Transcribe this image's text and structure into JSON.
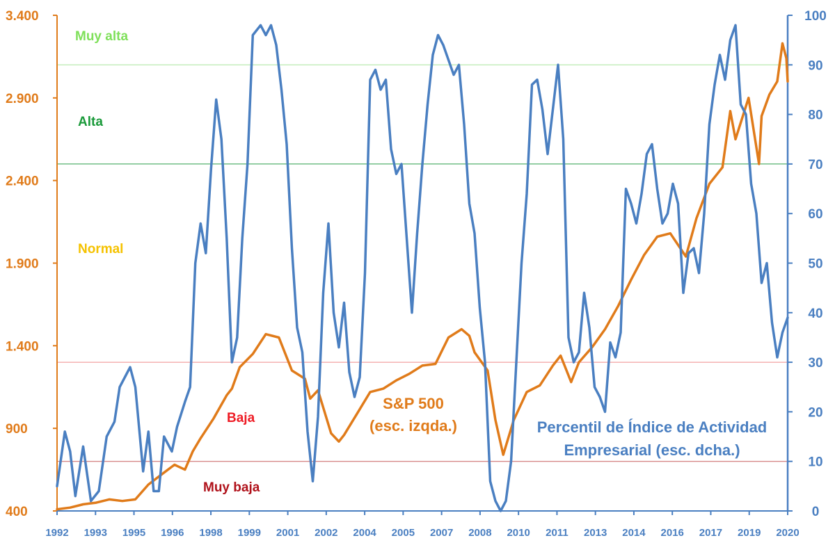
{
  "chart_data": {
    "type": "line",
    "title": "",
    "x_range": [
      1992,
      2020
    ],
    "x_ticks": [
      "1992",
      "1993",
      "1995",
      "1996",
      "1998",
      "1999",
      "2001",
      "2002",
      "2004",
      "2005",
      "2007",
      "2008",
      "2010",
      "2011",
      "2013",
      "2014",
      "2016",
      "2017",
      "2019",
      "2020"
    ],
    "y_left": {
      "range": [
        400,
        3400
      ],
      "ticks": [
        "400",
        "900",
        "1.400",
        "1.900",
        "2.400",
        "2.900",
        "3.400"
      ],
      "color": "#e07b1a"
    },
    "y_right": {
      "range": [
        0,
        100
      ],
      "ticks": [
        "0",
        "10",
        "20",
        "30",
        "40",
        "50",
        "60",
        "70",
        "80",
        "90",
        "100"
      ],
      "color": "#4a7fc1"
    },
    "zones": [
      {
        "label": "Muy alta",
        "color": "#7fe05a"
      },
      {
        "label": "Alta",
        "color": "#1a9a3a"
      },
      {
        "label": "Normal",
        "color": "#f5c200"
      },
      {
        "label": "Baja",
        "color": "#ee1c25"
      },
      {
        "label": "Muy baja",
        "color": "#b0121b"
      }
    ],
    "thresholds_right": [
      {
        "value": 90,
        "color": "#a8e59a"
      },
      {
        "value": 70,
        "color": "#2a9d4a"
      },
      {
        "value": 30,
        "color": "#f08a8a"
      },
      {
        "value": 10,
        "color": "#c86060"
      }
    ],
    "series": [
      {
        "name": "S&P 500",
        "label_lines": [
          "S&P 500",
          "(esc. izqda.)"
        ],
        "axis": "left",
        "color": "#e07b1a",
        "points": [
          [
            1992.0,
            410
          ],
          [
            1992.5,
            420
          ],
          [
            1993.0,
            440
          ],
          [
            1993.5,
            450
          ],
          [
            1994.0,
            470
          ],
          [
            1994.5,
            460
          ],
          [
            1995.0,
            470
          ],
          [
            1995.5,
            560
          ],
          [
            1996.0,
            620
          ],
          [
            1996.5,
            680
          ],
          [
            1996.9,
            650
          ],
          [
            1997.2,
            760
          ],
          [
            1997.5,
            840
          ],
          [
            1998.0,
            960
          ],
          [
            1998.5,
            1100
          ],
          [
            1998.7,
            1140
          ],
          [
            1999.0,
            1270
          ],
          [
            1999.5,
            1350
          ],
          [
            2000.0,
            1470
          ],
          [
            2000.5,
            1450
          ],
          [
            2001.0,
            1250
          ],
          [
            2001.5,
            1200
          ],
          [
            2001.7,
            1080
          ],
          [
            2002.0,
            1130
          ],
          [
            2002.5,
            870
          ],
          [
            2002.8,
            820
          ],
          [
            2003.0,
            860
          ],
          [
            2003.5,
            990
          ],
          [
            2004.0,
            1120
          ],
          [
            2004.5,
            1140
          ],
          [
            2005.0,
            1190
          ],
          [
            2005.5,
            1230
          ],
          [
            2006.0,
            1280
          ],
          [
            2006.5,
            1290
          ],
          [
            2007.0,
            1450
          ],
          [
            2007.5,
            1500
          ],
          [
            2007.8,
            1460
          ],
          [
            2008.0,
            1360
          ],
          [
            2008.5,
            1250
          ],
          [
            2008.8,
            950
          ],
          [
            2009.1,
            740
          ],
          [
            2009.5,
            950
          ],
          [
            2010.0,
            1120
          ],
          [
            2010.5,
            1160
          ],
          [
            2011.0,
            1280
          ],
          [
            2011.3,
            1340
          ],
          [
            2011.7,
            1180
          ],
          [
            2012.0,
            1300
          ],
          [
            2012.5,
            1390
          ],
          [
            2013.0,
            1500
          ],
          [
            2013.5,
            1640
          ],
          [
            2014.0,
            1800
          ],
          [
            2014.5,
            1950
          ],
          [
            2015.0,
            2060
          ],
          [
            2015.5,
            2080
          ],
          [
            2015.8,
            2010
          ],
          [
            2016.1,
            1940
          ],
          [
            2016.5,
            2170
          ],
          [
            2017.0,
            2380
          ],
          [
            2017.5,
            2480
          ],
          [
            2017.8,
            2820
          ],
          [
            2018.0,
            2650
          ],
          [
            2018.5,
            2900
          ],
          [
            2018.9,
            2500
          ],
          [
            2019.0,
            2790
          ],
          [
            2019.3,
            2920
          ],
          [
            2019.6,
            3000
          ],
          [
            2019.8,
            3230
          ],
          [
            2019.95,
            3140
          ],
          [
            2020.0,
            3000
          ]
        ]
      },
      {
        "name": "Percentil de Índice de Actividad Empresarial",
        "label_lines": [
          "Percentil de Índice de Actividad",
          "Empresarial (esc. dcha.)"
        ],
        "axis": "right",
        "color": "#4a7fc1",
        "points": [
          [
            1992.0,
            5
          ],
          [
            1992.3,
            16
          ],
          [
            1992.5,
            12
          ],
          [
            1992.7,
            3
          ],
          [
            1993.0,
            13
          ],
          [
            1993.3,
            2
          ],
          [
            1993.6,
            4
          ],
          [
            1993.9,
            15
          ],
          [
            1994.2,
            18
          ],
          [
            1994.4,
            25
          ],
          [
            1994.6,
            27
          ],
          [
            1994.8,
            29
          ],
          [
            1995.0,
            25
          ],
          [
            1995.3,
            8
          ],
          [
            1995.5,
            16
          ],
          [
            1995.7,
            4
          ],
          [
            1995.9,
            4
          ],
          [
            1996.1,
            15
          ],
          [
            1996.4,
            12
          ],
          [
            1996.6,
            17
          ],
          [
            1996.9,
            22
          ],
          [
            1997.1,
            25
          ],
          [
            1997.3,
            50
          ],
          [
            1997.5,
            58
          ],
          [
            1997.7,
            52
          ],
          [
            1997.9,
            69
          ],
          [
            1998.1,
            83
          ],
          [
            1998.3,
            75
          ],
          [
            1998.5,
            55
          ],
          [
            1998.7,
            30
          ],
          [
            1998.9,
            35
          ],
          [
            1999.1,
            55
          ],
          [
            1999.3,
            70
          ],
          [
            1999.5,
            96
          ],
          [
            1999.8,
            98
          ],
          [
            2000.0,
            96
          ],
          [
            2000.2,
            98
          ],
          [
            2000.4,
            94
          ],
          [
            2000.6,
            85
          ],
          [
            2000.8,
            74
          ],
          [
            2001.0,
            53
          ],
          [
            2001.2,
            37
          ],
          [
            2001.4,
            32
          ],
          [
            2001.6,
            16
          ],
          [
            2001.8,
            6
          ],
          [
            2002.0,
            19
          ],
          [
            2002.2,
            44
          ],
          [
            2002.4,
            58
          ],
          [
            2002.6,
            40
          ],
          [
            2002.8,
            33
          ],
          [
            2003.0,
            42
          ],
          [
            2003.2,
            28
          ],
          [
            2003.4,
            23
          ],
          [
            2003.6,
            27
          ],
          [
            2003.8,
            48
          ],
          [
            2004.0,
            87
          ],
          [
            2004.2,
            89
          ],
          [
            2004.4,
            85
          ],
          [
            2004.6,
            87
          ],
          [
            2004.8,
            73
          ],
          [
            2005.0,
            68
          ],
          [
            2005.2,
            70
          ],
          [
            2005.4,
            55
          ],
          [
            2005.6,
            40
          ],
          [
            2005.8,
            56
          ],
          [
            2006.0,
            70
          ],
          [
            2006.2,
            82
          ],
          [
            2006.4,
            92
          ],
          [
            2006.6,
            96
          ],
          [
            2006.8,
            94
          ],
          [
            2007.0,
            91
          ],
          [
            2007.2,
            88
          ],
          [
            2007.4,
            90
          ],
          [
            2007.6,
            78
          ],
          [
            2007.8,
            62
          ],
          [
            2008.0,
            56
          ],
          [
            2008.2,
            41
          ],
          [
            2008.4,
            30
          ],
          [
            2008.6,
            6
          ],
          [
            2008.8,
            2
          ],
          [
            2009.0,
            0
          ],
          [
            2009.2,
            2
          ],
          [
            2009.4,
            10
          ],
          [
            2009.6,
            30
          ],
          [
            2009.8,
            50
          ],
          [
            2010.0,
            64
          ],
          [
            2010.2,
            86
          ],
          [
            2010.4,
            87
          ],
          [
            2010.6,
            81
          ],
          [
            2010.8,
            72
          ],
          [
            2011.0,
            81
          ],
          [
            2011.2,
            90
          ],
          [
            2011.4,
            75
          ],
          [
            2011.6,
            35
          ],
          [
            2011.8,
            30
          ],
          [
            2012.0,
            32
          ],
          [
            2012.2,
            44
          ],
          [
            2012.4,
            37
          ],
          [
            2012.6,
            25
          ],
          [
            2012.8,
            23
          ],
          [
            2013.0,
            20
          ],
          [
            2013.2,
            34
          ],
          [
            2013.4,
            31
          ],
          [
            2013.6,
            36
          ],
          [
            2013.8,
            65
          ],
          [
            2014.0,
            62
          ],
          [
            2014.2,
            58
          ],
          [
            2014.4,
            64
          ],
          [
            2014.6,
            72
          ],
          [
            2014.8,
            74
          ],
          [
            2015.0,
            65
          ],
          [
            2015.2,
            58
          ],
          [
            2015.4,
            60
          ],
          [
            2015.6,
            66
          ],
          [
            2015.8,
            62
          ],
          [
            2016.0,
            44
          ],
          [
            2016.2,
            52
          ],
          [
            2016.4,
            53
          ],
          [
            2016.6,
            48
          ],
          [
            2016.8,
            60
          ],
          [
            2017.0,
            78
          ],
          [
            2017.2,
            86
          ],
          [
            2017.4,
            92
          ],
          [
            2017.6,
            87
          ],
          [
            2017.8,
            95
          ],
          [
            2018.0,
            98
          ],
          [
            2018.2,
            82
          ],
          [
            2018.4,
            80
          ],
          [
            2018.6,
            66
          ],
          [
            2018.8,
            60
          ],
          [
            2019.0,
            46
          ],
          [
            2019.2,
            50
          ],
          [
            2019.4,
            38
          ],
          [
            2019.6,
            31
          ],
          [
            2019.8,
            36
          ],
          [
            2020.0,
            39
          ]
        ]
      }
    ]
  }
}
